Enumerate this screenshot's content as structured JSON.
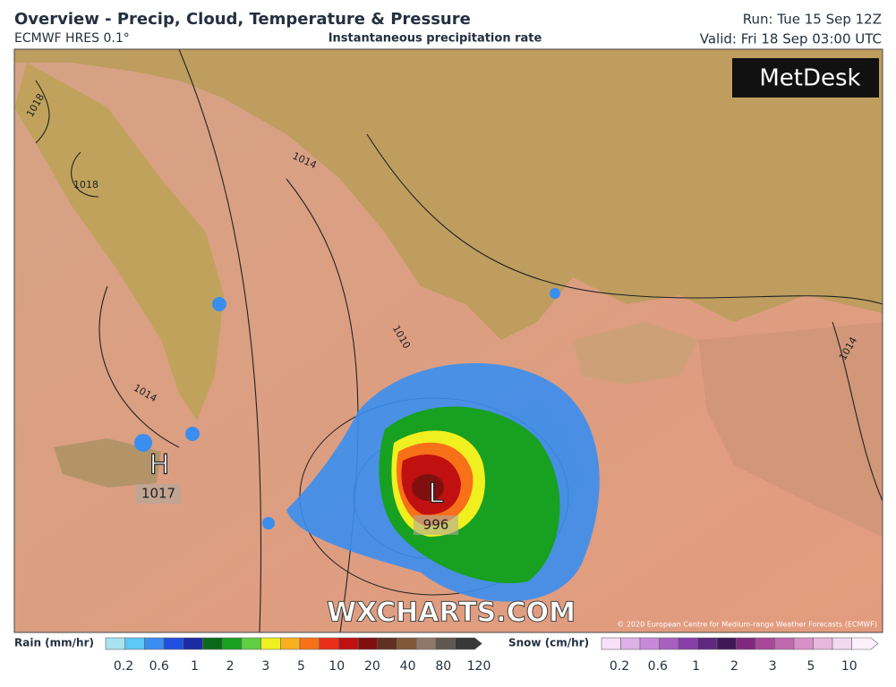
{
  "header": {
    "title": "Overview - Precip, Cloud, Temperature & Pressure",
    "model": "ECMWF HRES 0.1°",
    "subtitle": "Instantaneous precipitation rate",
    "run": "Run: Tue 15 Sep 12Z",
    "valid": "Valid: Fri 18 Sep 03:00 UTC"
  },
  "logo": "MetDesk",
  "watermark": "WXCHARTS.COM",
  "copyright": "© 2020 European Centre for Medium-range Weather Forecasts (ECMWF)",
  "isobar_labels": [
    "1018",
    "1018",
    "1014",
    "1014",
    "1010",
    "1014"
  ],
  "pressure_centers": [
    {
      "symbol": "H",
      "value": "1017"
    },
    {
      "symbol": "L",
      "value": "996"
    }
  ],
  "rain_legend": {
    "title": "Rain (mm/hr)",
    "ticks": [
      0.2,
      0.6,
      1,
      2,
      3,
      5,
      10,
      20,
      40,
      80,
      120
    ],
    "colors": [
      "#a8e4f0",
      "#5cc8f4",
      "#3a8ef0",
      "#2050e0",
      "#1a2aa0",
      "#0a6a18",
      "#18a020",
      "#60d040",
      "#f0f020",
      "#f8b020",
      "#f87018",
      "#e83018",
      "#c01010",
      "#801010",
      "#603020",
      "#805838",
      "#907868",
      "#605850",
      "#383838"
    ]
  },
  "snow_legend": {
    "title": "Snow (cm/hr)",
    "ticks": [
      0.2,
      0.6,
      1,
      2,
      3,
      5,
      10
    ],
    "colors": [
      "#f8e0f8",
      "#e0b0e8",
      "#c888d8",
      "#a860c0",
      "#8840a8",
      "#602880",
      "#401858",
      "#802880",
      "#a84898",
      "#c068b0",
      "#d890c8",
      "#e8b8e0",
      "#f4d8f0",
      "#fcf0fc"
    ]
  }
}
